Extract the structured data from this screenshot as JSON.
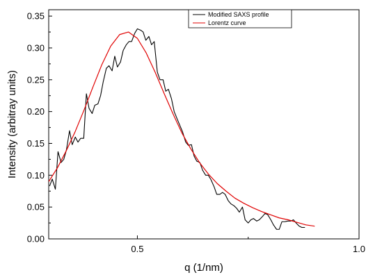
{
  "chart_data": {
    "type": "line",
    "title": "",
    "xlabel": "q (1/nm)",
    "ylabel": "Intensity (arbitray units)",
    "xlim": [
      0.3,
      1.0
    ],
    "ylim": [
      0.0,
      0.36
    ],
    "x_ticks": [
      0.5,
      1.0
    ],
    "x_tick_labels": [
      "0.5",
      "1.0"
    ],
    "y_ticks": [
      0.0,
      0.05,
      0.1,
      0.15,
      0.2,
      0.25,
      0.3,
      0.35
    ],
    "y_tick_labels": [
      "0.00",
      "0.05",
      "0.10",
      "0.15",
      "0.20",
      "0.25",
      "0.30",
      "0.35"
    ],
    "grid": false,
    "legend_position": "top-right",
    "series": [
      {
        "name": "Modified SAXS profile",
        "color": "#000000",
        "points": [
          [
            0.302,
            0.083
          ],
          [
            0.308,
            0.094
          ],
          [
            0.315,
            0.078
          ],
          [
            0.321,
            0.137
          ],
          [
            0.328,
            0.12
          ],
          [
            0.334,
            0.125
          ],
          [
            0.34,
            0.14
          ],
          [
            0.347,
            0.17
          ],
          [
            0.353,
            0.148
          ],
          [
            0.36,
            0.16
          ],
          [
            0.366,
            0.152
          ],
          [
            0.372,
            0.158
          ],
          [
            0.379,
            0.158
          ],
          [
            0.385,
            0.228
          ],
          [
            0.391,
            0.205
          ],
          [
            0.398,
            0.197
          ],
          [
            0.404,
            0.21
          ],
          [
            0.411,
            0.212
          ],
          [
            0.417,
            0.225
          ],
          [
            0.423,
            0.247
          ],
          [
            0.43,
            0.268
          ],
          [
            0.436,
            0.272
          ],
          [
            0.443,
            0.264
          ],
          [
            0.449,
            0.287
          ],
          [
            0.455,
            0.27
          ],
          [
            0.462,
            0.278
          ],
          [
            0.468,
            0.296
          ],
          [
            0.475,
            0.305
          ],
          [
            0.481,
            0.31
          ],
          [
            0.487,
            0.31
          ],
          [
            0.494,
            0.323
          ],
          [
            0.5,
            0.33
          ],
          [
            0.507,
            0.328
          ],
          [
            0.513,
            0.325
          ],
          [
            0.519,
            0.312
          ],
          [
            0.526,
            0.318
          ],
          [
            0.532,
            0.305
          ],
          [
            0.538,
            0.31
          ],
          [
            0.545,
            0.262
          ],
          [
            0.551,
            0.25
          ],
          [
            0.558,
            0.25
          ],
          [
            0.564,
            0.232
          ],
          [
            0.57,
            0.235
          ],
          [
            0.577,
            0.22
          ],
          [
            0.583,
            0.2
          ],
          [
            0.59,
            0.188
          ],
          [
            0.596,
            0.178
          ],
          [
            0.602,
            0.168
          ],
          [
            0.609,
            0.152
          ],
          [
            0.615,
            0.147
          ],
          [
            0.622,
            0.148
          ],
          [
            0.628,
            0.13
          ],
          [
            0.634,
            0.122
          ],
          [
            0.641,
            0.12
          ],
          [
            0.647,
            0.108
          ],
          [
            0.654,
            0.1
          ],
          [
            0.66,
            0.1
          ],
          [
            0.666,
            0.093
          ],
          [
            0.673,
            0.082
          ],
          [
            0.679,
            0.07
          ],
          [
            0.686,
            0.07
          ],
          [
            0.692,
            0.073
          ],
          [
            0.698,
            0.07
          ],
          [
            0.705,
            0.06
          ],
          [
            0.711,
            0.055
          ],
          [
            0.718,
            0.052
          ],
          [
            0.724,
            0.048
          ],
          [
            0.73,
            0.042
          ],
          [
            0.737,
            0.05
          ],
          [
            0.743,
            0.03
          ],
          [
            0.75,
            0.025
          ],
          [
            0.756,
            0.03
          ],
          [
            0.762,
            0.032
          ],
          [
            0.769,
            0.028
          ],
          [
            0.775,
            0.03
          ],
          [
            0.782,
            0.035
          ],
          [
            0.788,
            0.04
          ],
          [
            0.794,
            0.038
          ],
          [
            0.801,
            0.03
          ],
          [
            0.807,
            0.022
          ],
          [
            0.814,
            0.015
          ],
          [
            0.82,
            0.015
          ],
          [
            0.826,
            0.027
          ],
          [
            0.833,
            0.027
          ],
          [
            0.839,
            0.028
          ],
          [
            0.846,
            0.028
          ],
          [
            0.852,
            0.03
          ],
          [
            0.858,
            0.025
          ],
          [
            0.865,
            0.02
          ],
          [
            0.871,
            0.018
          ],
          [
            0.878,
            0.018
          ]
        ]
      },
      {
        "name": "Lorentz curve",
        "color": "#e00000",
        "points": [
          [
            0.3,
            0.09
          ],
          [
            0.32,
            0.112
          ],
          [
            0.34,
            0.139
          ],
          [
            0.36,
            0.169
          ],
          [
            0.38,
            0.203
          ],
          [
            0.4,
            0.239
          ],
          [
            0.42,
            0.274
          ],
          [
            0.44,
            0.303
          ],
          [
            0.46,
            0.321
          ],
          [
            0.48,
            0.325
          ],
          [
            0.5,
            0.315
          ],
          [
            0.52,
            0.292
          ],
          [
            0.54,
            0.262
          ],
          [
            0.56,
            0.229
          ],
          [
            0.58,
            0.197
          ],
          [
            0.6,
            0.167
          ],
          [
            0.62,
            0.142
          ],
          [
            0.64,
            0.12
          ],
          [
            0.66,
            0.102
          ],
          [
            0.68,
            0.087
          ],
          [
            0.7,
            0.075
          ],
          [
            0.72,
            0.064
          ],
          [
            0.74,
            0.056
          ],
          [
            0.76,
            0.049
          ],
          [
            0.78,
            0.043
          ],
          [
            0.8,
            0.038
          ],
          [
            0.82,
            0.033
          ],
          [
            0.84,
            0.03
          ],
          [
            0.86,
            0.026
          ],
          [
            0.88,
            0.022
          ],
          [
            0.9,
            0.02
          ]
        ]
      }
    ]
  }
}
